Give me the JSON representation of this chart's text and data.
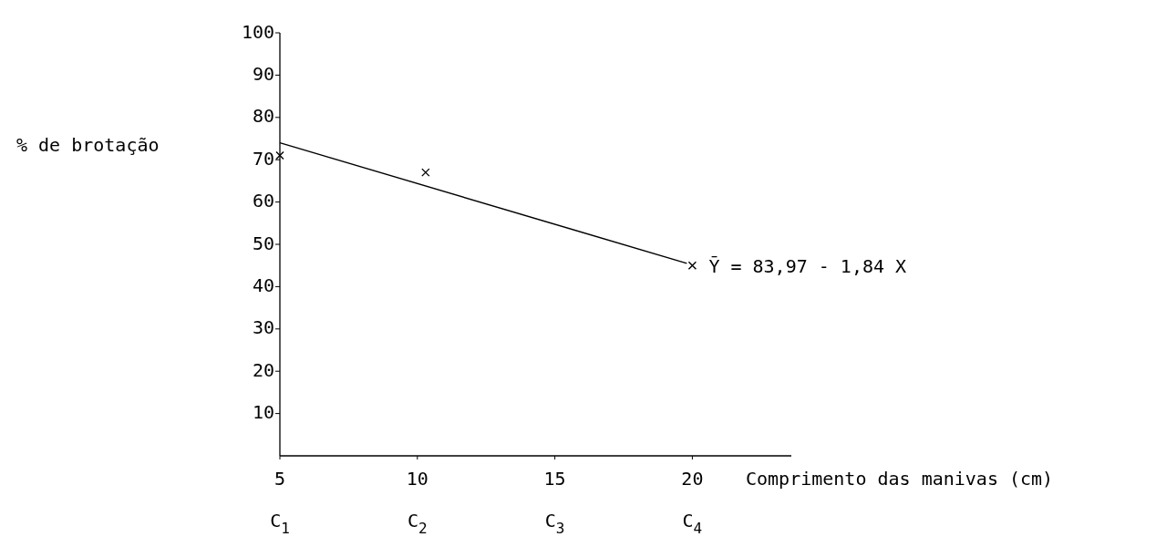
{
  "chart_data": {
    "type": "scatter",
    "xlabel": "Comprimento das manivas (cm)",
    "ylabel": "% de brotação",
    "xlim": [
      5,
      23.6
    ],
    "ylim": [
      0,
      100
    ],
    "xticks": [
      5,
      10,
      15,
      20
    ],
    "yticks": [
      10,
      20,
      30,
      40,
      50,
      60,
      70,
      80,
      90,
      100
    ],
    "grid": false,
    "series": [
      {
        "color": "#000000",
        "marker": "cross",
        "x": [
          5,
          10.3,
          20
        ],
        "values": [
          71,
          67,
          45
        ]
      },
      {
        "type": "line",
        "color": "#000000",
        "marker": "none",
        "line_style": "solid",
        "x": [
          5,
          19.8
        ],
        "values": [
          74,
          45.5
        ]
      }
    ],
    "annotations": [
      "Ȳ = 83,97 - 1,84 X",
      "C$_{1}$",
      "C$_{2}$",
      "C$_{3}$",
      "C$_{4}$"
    ]
  }
}
